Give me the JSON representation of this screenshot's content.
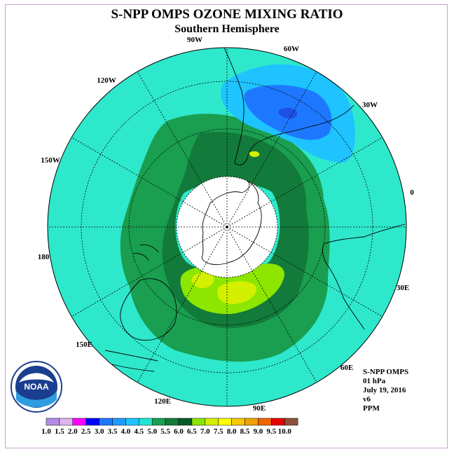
{
  "title": "S-NPP OMPS OZONE MIXING RATIO",
  "subtitle": "Southern Hemisphere",
  "longitude_labels": {
    "lon_90w": "90W",
    "lon_60w": "60W",
    "lon_30w": "30W",
    "lon_120w": "120W",
    "lon_150w": "150W",
    "lon_0": "0",
    "lon_180": "180",
    "lon_30e": "30E",
    "lon_150e": "150E",
    "lon_60e": "60E",
    "lon_120e": "120E",
    "lon_90e": "90E"
  },
  "info": {
    "instrument": "S-NPP OMPS",
    "level": "01 hPa",
    "date": "July 19, 2016",
    "version": "v6",
    "units": "PPM"
  },
  "logo": {
    "text": "NOAA"
  },
  "colorbar": {
    "ticks": [
      "1.0",
      "1.5",
      "2.0",
      "2.5",
      "3.0",
      "3.5",
      "4.0",
      "4.5",
      "5.0",
      "5.5",
      "6.0",
      "6.5",
      "7.0",
      "7.5",
      "8.0",
      "8.5",
      "9.0",
      "9.5",
      "10.0"
    ],
    "colors": [
      "#b48ce8",
      "#e0b4f0",
      "#ff00ff",
      "#0000ff",
      "#1e78ff",
      "#1e9bff",
      "#1ec3ff",
      "#1ee6d2",
      "#1a9e50",
      "#127a3a",
      "#0a5a28",
      "#8ce600",
      "#d2f000",
      "#ffff00",
      "#f5c800",
      "#f0a000",
      "#f06400",
      "#e60000",
      "#8c503c"
    ]
  },
  "map": {
    "ocean_background_color": "#2ee8cc",
    "night_region_color": "#ffffff",
    "contour_colors": {
      "c_3_5": "#1e78ff",
      "c_4_0": "#1ec3ff",
      "c_5_0": "#1a9e50",
      "c_5_5": "#127a3a",
      "c_6_0": "#8ce600",
      "c_6_5": "#d2f000"
    }
  }
}
